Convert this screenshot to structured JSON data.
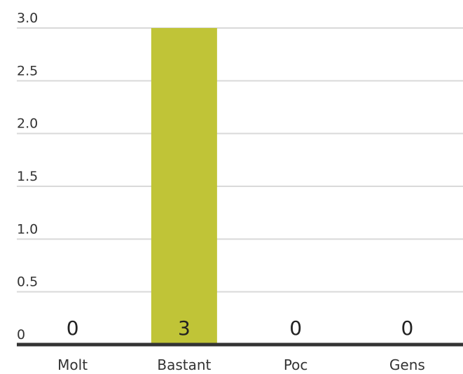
{
  "chart_data": {
    "type": "bar",
    "categories": [
      "Molt",
      "Bastant",
      "Poc",
      "Gens"
    ],
    "values": [
      0,
      3,
      0,
      0
    ],
    "value_labels": [
      "0",
      "3",
      "0",
      "0"
    ],
    "yticks": [
      "0",
      "0.5",
      "1.0",
      "1.5",
      "2.0",
      "2.5",
      "3.0"
    ],
    "ylim": [
      0,
      3
    ],
    "grid": true,
    "title": "",
    "xlabel": "",
    "ylabel": "",
    "colors": {
      "bar": "#c0c437",
      "grid": "#d9d9d9",
      "axis": "#333333",
      "text": "#333333"
    }
  }
}
